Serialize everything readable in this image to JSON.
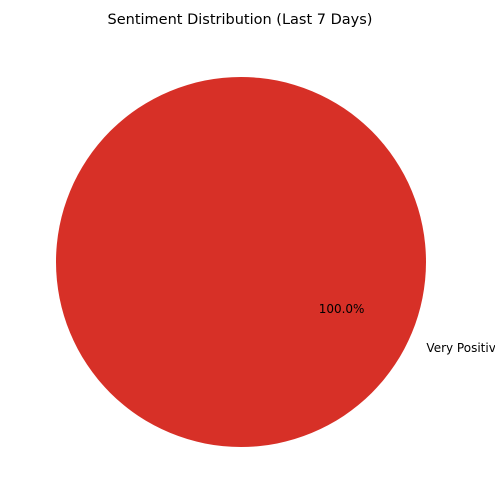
{
  "chart_data": {
    "type": "pie",
    "title": "Sentiment Distribution (Last 7 Days)",
    "slices": [
      {
        "label": "Very Positive",
        "value": 100.0,
        "percent_label": "100.0%",
        "color": "#d73027"
      }
    ],
    "legend": "none"
  }
}
